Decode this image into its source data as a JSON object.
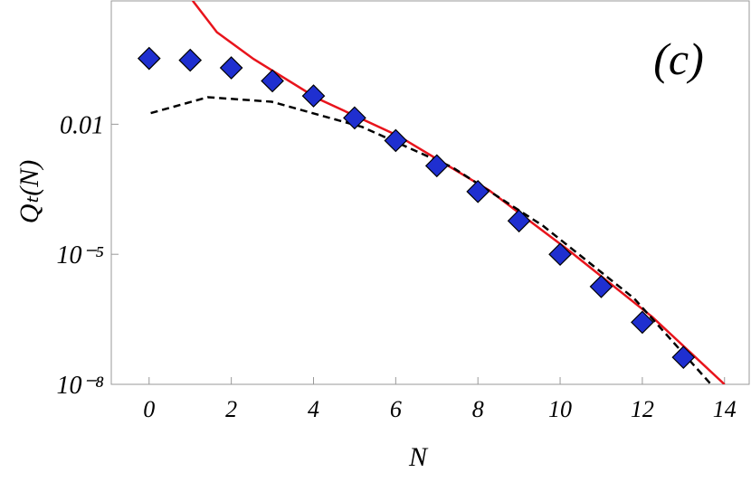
{
  "chart_data": {
    "type": "scatter",
    "xlabel": "N",
    "ylabel": "Qₜ(N)",
    "annotation": "(c)",
    "xlim": [
      -0.92,
      14.6
    ],
    "ylim": [
      1e-08,
      7
    ],
    "log_y": true,
    "xticks": [
      0,
      2,
      4,
      6,
      8,
      10,
      12,
      14
    ],
    "yticks": [
      0.01,
      {
        "value": 1e-05,
        "label": "10⁻⁵"
      },
      {
        "value": 1e-08,
        "label": "10⁻⁸"
      }
    ],
    "points": {
      "color": "#1f2fd0",
      "x": [
        0,
        1,
        2,
        3,
        4,
        5,
        6,
        7,
        8,
        9,
        10,
        11,
        12,
        13
      ],
      "values": [
        0.33,
        0.3,
        0.2,
        0.1,
        0.045,
        0.014,
        0.0042,
        0.0011,
        0.00028,
        5.9e-05,
        1e-05,
        1.8e-06,
        2.7e-07,
        4.2e-08
      ]
    },
    "lines": [
      {
        "color": "#e8141c",
        "dash": false,
        "x": [
          1.06,
          1.65,
          2.54,
          4.08,
          6.06,
          8.27,
          10.25,
          12.24,
          14
        ],
        "values": [
          7.1,
          1.33,
          0.32,
          0.04,
          0.0054,
          0.0003,
          1.15e-05,
          3.6e-07,
          1e-08
        ]
      },
      {
        "color": "#000000",
        "dash": true,
        "x": [
          0.04,
          1.43,
          2.98,
          5.18,
          7.39,
          9.59,
          11.8,
          13.67
        ],
        "values": [
          0.018,
          0.042,
          0.033,
          0.0087,
          0.001,
          4.5e-05,
          9.6e-07,
          1e-08
        ]
      }
    ]
  }
}
